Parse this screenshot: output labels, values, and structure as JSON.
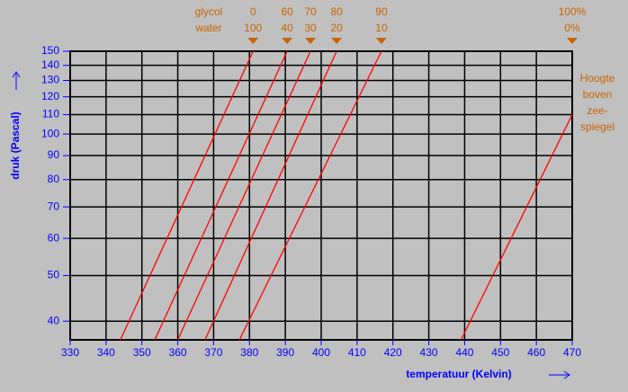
{
  "chart_data": {
    "type": "line",
    "xlabel": "temperatuur (Kelvin)",
    "ylabel": "druk (Pascal)",
    "header": [
      "glycol",
      "water"
    ],
    "annotation": [
      "Hoogte",
      "boven",
      "zee-",
      "spiegel"
    ],
    "xlim": [
      330,
      470
    ],
    "ylim": [
      36.5,
      150
    ],
    "log_y": true,
    "grid": true,
    "xticks": [
      330,
      340,
      350,
      360,
      370,
      380,
      390,
      400,
      410,
      420,
      430,
      440,
      450,
      460,
      470
    ],
    "yticks": [
      40,
      50,
      60,
      70,
      80,
      90,
      100,
      110,
      120,
      130,
      140,
      150
    ],
    "series": [
      {
        "glycol": "0",
        "water": "100",
        "color": "#ff0000",
        "x": [
          344,
          381
        ],
        "values": [
          36.5,
          150
        ]
      },
      {
        "glycol": "60",
        "water": "40",
        "color": "#ff0000",
        "x": [
          353.6,
          390.5
        ],
        "values": [
          36.5,
          150
        ]
      },
      {
        "glycol": "70",
        "water": "30",
        "color": "#ff0000",
        "x": [
          360,
          397
        ],
        "values": [
          36.5,
          150
        ]
      },
      {
        "glycol": "80",
        "water": "20",
        "color": "#ff0000",
        "x": [
          367.6,
          404.3
        ],
        "values": [
          36.5,
          150
        ]
      },
      {
        "glycol": "90",
        "water": "10",
        "color": "#ff0000",
        "x": [
          377.2,
          416.8
        ],
        "values": [
          36.5,
          150
        ]
      },
      {
        "glycol": "100%",
        "water": "0%",
        "color": "#ff0000",
        "x": [
          439,
          470
        ],
        "values": [
          36.5,
          110
        ]
      }
    ]
  }
}
